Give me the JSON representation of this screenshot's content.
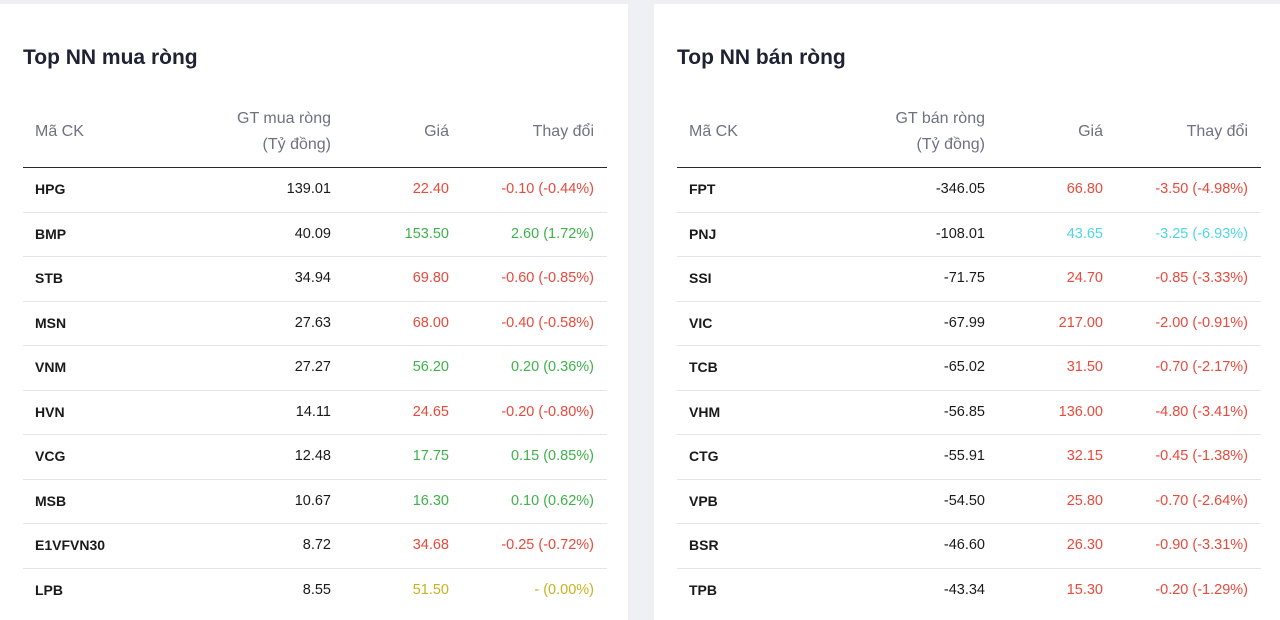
{
  "colors": {
    "down": "#e84a3c",
    "up": "#3eb24a",
    "ref": "#c8b21e",
    "floor": "#4fd6e6"
  },
  "buy": {
    "title": "Top NN mua ròng",
    "headers": {
      "symbol": "Mã CK",
      "value_line1": "GT mua ròng",
      "value_line2": "(Tỷ đồng)",
      "price": "Giá",
      "change": "Thay đổi"
    },
    "rows": [
      {
        "symbol": "HPG",
        "value": "139.01",
        "price": "22.40",
        "change": "-0.10 (-0.44%)",
        "trend": "down"
      },
      {
        "symbol": "BMP",
        "value": "40.09",
        "price": "153.50",
        "change": "2.60 (1.72%)",
        "trend": "up"
      },
      {
        "symbol": "STB",
        "value": "34.94",
        "price": "69.80",
        "change": "-0.60 (-0.85%)",
        "trend": "down"
      },
      {
        "symbol": "MSN",
        "value": "27.63",
        "price": "68.00",
        "change": "-0.40 (-0.58%)",
        "trend": "down"
      },
      {
        "symbol": "VNM",
        "value": "27.27",
        "price": "56.20",
        "change": "0.20 (0.36%)",
        "trend": "up"
      },
      {
        "symbol": "HVN",
        "value": "14.11",
        "price": "24.65",
        "change": "-0.20 (-0.80%)",
        "trend": "down"
      },
      {
        "symbol": "VCG",
        "value": "12.48",
        "price": "17.75",
        "change": "0.15 (0.85%)",
        "trend": "up"
      },
      {
        "symbol": "MSB",
        "value": "10.67",
        "price": "16.30",
        "change": "0.10 (0.62%)",
        "trend": "up"
      },
      {
        "symbol": "E1VFVN30",
        "value": "8.72",
        "price": "34.68",
        "change": "-0.25 (-0.72%)",
        "trend": "down"
      },
      {
        "symbol": "LPB",
        "value": "8.55",
        "price": "51.50",
        "change": "- (0.00%)",
        "trend": "ref"
      }
    ]
  },
  "sell": {
    "title": "Top NN bán ròng",
    "headers": {
      "symbol": "Mã CK",
      "value_line1": "GT bán ròng",
      "value_line2": "(Tỷ đồng)",
      "price": "Giá",
      "change": "Thay đổi"
    },
    "rows": [
      {
        "symbol": "FPT",
        "value": "-346.05",
        "price": "66.80",
        "change": "-3.50 (-4.98%)",
        "trend": "down"
      },
      {
        "symbol": "PNJ",
        "value": "-108.01",
        "price": "43.65",
        "change": "-3.25 (-6.93%)",
        "trend": "floor"
      },
      {
        "symbol": "SSI",
        "value": "-71.75",
        "price": "24.70",
        "change": "-0.85 (-3.33%)",
        "trend": "down"
      },
      {
        "symbol": "VIC",
        "value": "-67.99",
        "price": "217.00",
        "change": "-2.00 (-0.91%)",
        "trend": "down"
      },
      {
        "symbol": "TCB",
        "value": "-65.02",
        "price": "31.50",
        "change": "-0.70 (-2.17%)",
        "trend": "down"
      },
      {
        "symbol": "VHM",
        "value": "-56.85",
        "price": "136.00",
        "change": "-4.80 (-3.41%)",
        "trend": "down"
      },
      {
        "symbol": "CTG",
        "value": "-55.91",
        "price": "32.15",
        "change": "-0.45 (-1.38%)",
        "trend": "down"
      },
      {
        "symbol": "VPB",
        "value": "-54.50",
        "price": "25.80",
        "change": "-0.70 (-2.64%)",
        "trend": "down"
      },
      {
        "symbol": "BSR",
        "value": "-46.60",
        "price": "26.30",
        "change": "-0.90 (-3.31%)",
        "trend": "down"
      },
      {
        "symbol": "TPB",
        "value": "-43.34",
        "price": "15.30",
        "change": "-0.20 (-1.29%)",
        "trend": "down"
      }
    ]
  }
}
